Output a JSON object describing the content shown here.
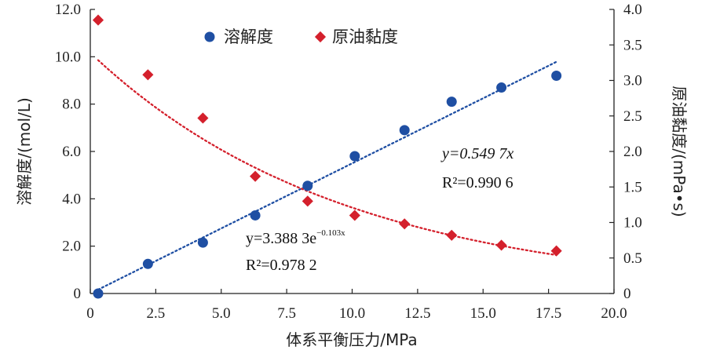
{
  "chart_data": {
    "type": "scatter",
    "xlabel": "体系平衡压力/MPa",
    "ylabel_left": "溶解度/(mol/L)",
    "ylabel_right": "原油黏度/(mPa•s)",
    "xlim": [
      0,
      20
    ],
    "ylim_left": [
      0,
      12
    ],
    "ylim_right": [
      0,
      4
    ],
    "x_ticks": [
      "0",
      "2.5",
      "5.0",
      "7.5",
      "10.0",
      "12.5",
      "15.0",
      "17.5",
      "20.0"
    ],
    "y_left_ticks": [
      "0",
      "2.0",
      "4.0",
      "6.0",
      "8.0",
      "10.0",
      "12.0"
    ],
    "y_right_ticks": [
      "0",
      "0.5",
      "1.0",
      "1.5",
      "2.0",
      "2.5",
      "3.0",
      "3.5",
      "4.0"
    ],
    "grid": false,
    "legend_position": "top-left",
    "series": [
      {
        "name": "溶解度",
        "axis": "left",
        "marker": "circle",
        "color": "#1f4fa3",
        "x": [
          0.3,
          2.2,
          4.3,
          6.3,
          8.3,
          10.1,
          12.0,
          13.8,
          15.7,
          17.8
        ],
        "y": [
          0,
          1.25,
          2.15,
          3.3,
          4.55,
          5.8,
          6.9,
          8.1,
          8.7,
          9.2
        ],
        "fit": {
          "type": "linear",
          "coef": 0.5497,
          "x_range": [
            0.3,
            17.8
          ],
          "color": "#1f4fa3"
        }
      },
      {
        "name": "原油黏度",
        "axis": "right",
        "marker": "diamond",
        "color": "#d4202c",
        "x": [
          0.3,
          2.2,
          4.3,
          6.3,
          8.3,
          10.1,
          12.0,
          13.8,
          15.7,
          17.8
        ],
        "y": [
          3.85,
          3.08,
          2.47,
          1.65,
          1.3,
          1.1,
          0.98,
          0.82,
          0.68,
          0.6
        ],
        "fit": {
          "type": "exponential",
          "a": 3.3883,
          "b": -0.103,
          "x_range": [
            0.3,
            17.8
          ],
          "color": "#d4202c"
        }
      }
    ],
    "annotations": {
      "linear_eq": "y=0.549 7x",
      "linear_r2": "R²=0.990 6",
      "exp_eq": "y=3.388 3e",
      "exp_exponent": "−0.103x",
      "exp_r2": "R²=0.978 2"
    }
  }
}
